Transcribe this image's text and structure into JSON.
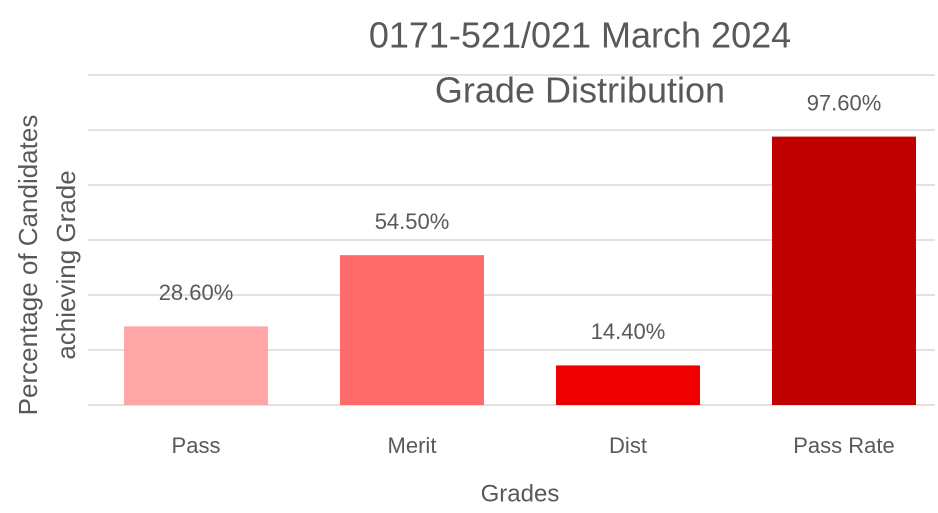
{
  "chart_data": {
    "type": "bar",
    "title": [
      "0171-521/021 March 2024",
      "Grade Distribution"
    ],
    "x_label": "Grades",
    "y_label": [
      "Percentage of Candidates",
      "achieving Grade"
    ],
    "categories": [
      "Pass",
      "Merit",
      "Dist",
      "Pass Rate"
    ],
    "values": [
      28.6,
      54.5,
      14.4,
      97.6
    ],
    "value_labels": [
      "28.60%",
      "54.50%",
      "14.40%",
      "97.60%"
    ],
    "colors": [
      "#ffa7a7",
      "#ff6b6b",
      "#ee0000",
      "#c00000"
    ],
    "ylim": [
      0,
      120
    ],
    "yticks": [
      0,
      20,
      40,
      60,
      80,
      100,
      120
    ],
    "grid": true
  }
}
